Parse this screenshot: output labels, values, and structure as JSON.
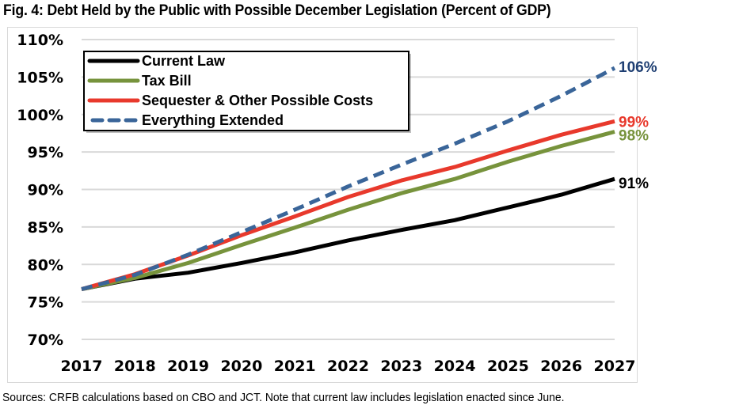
{
  "chart_data": {
    "type": "line",
    "title": "Fig. 4: Debt Held by the Public with Possible December Legislation (Percent of GDP)",
    "xlabel": "",
    "ylabel": "",
    "x": [
      "2017",
      "2018",
      "2019",
      "2020",
      "2021",
      "2022",
      "2023",
      "2024",
      "2025",
      "2026",
      "2027"
    ],
    "ylim": [
      70,
      110
    ],
    "yticks": [
      70,
      75,
      80,
      85,
      90,
      95,
      100,
      105,
      110
    ],
    "ytick_labels": [
      "70%",
      "75%",
      "80%",
      "85%",
      "90%",
      "95%",
      "100%",
      "105%",
      "110%"
    ],
    "grid": true,
    "legend_position": "top-left",
    "series": [
      {
        "name": "Current Law",
        "color": "#000000",
        "style": "solid",
        "values": [
          76.7,
          78.1,
          78.9,
          80.2,
          81.6,
          83.2,
          84.6,
          85.9,
          87.6,
          89.3,
          91.4
        ],
        "end_label": "91%"
      },
      {
        "name": "Tax Bill",
        "color": "#77933c",
        "style": "solid",
        "values": [
          76.7,
          78.2,
          80.2,
          82.6,
          84.9,
          87.3,
          89.5,
          91.4,
          93.7,
          95.8,
          97.7
        ],
        "end_label": "98%"
      },
      {
        "name": "Sequester & Other Possible Costs",
        "color": "#e8392c",
        "style": "solid",
        "values": [
          76.7,
          78.7,
          81.2,
          83.9,
          86.4,
          89.0,
          91.2,
          93.0,
          95.2,
          97.3,
          99.1
        ],
        "end_label": "99%"
      },
      {
        "name": "Everything Extended",
        "color": "#3a6599",
        "style": "dashed",
        "values": [
          76.7,
          78.6,
          81.3,
          84.3,
          87.3,
          90.4,
          93.3,
          96.1,
          99.1,
          102.5,
          106.2
        ],
        "end_label": "106%",
        "end_label_color": "#1f3f73"
      }
    ],
    "footer": "Sources: CRFB calculations based on CBO and JCT. Note that current law includes legislation enacted since June."
  }
}
